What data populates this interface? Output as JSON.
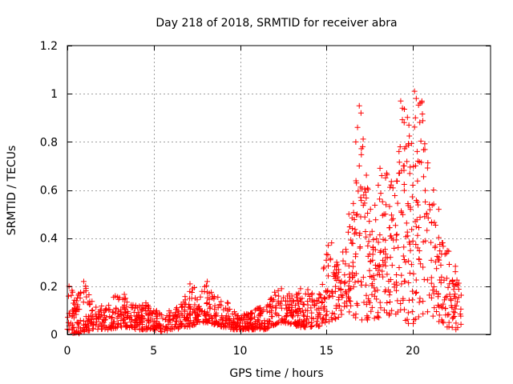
{
  "chart_data": {
    "type": "scatter",
    "title": "Day 218 of 2018, SRMTID for receiver abra",
    "xlabel": "GPS time / hours",
    "ylabel": "SRMTID / TECUs",
    "xlim": [
      0,
      24.5
    ],
    "ylim": [
      0,
      1.2
    ],
    "grid": true,
    "marker": "+",
    "color": "#ff0000",
    "xticks": [
      0,
      5,
      10,
      15,
      20
    ],
    "xtick_labels": [
      "0",
      "5",
      "10",
      "15",
      "20"
    ],
    "yticks": [
      0,
      0.2,
      0.4,
      0.6,
      0.8,
      1.0,
      1.2
    ],
    "ytick_labels": [
      "0",
      "0.2",
      "0.4",
      "0.6",
      "0.8",
      "1",
      "1.2"
    ],
    "series": [
      {
        "name": "abra",
        "envelope": {
          "x": [
            0,
            0.15,
            0.5,
            1,
            1.5,
            2,
            2.5,
            3,
            3.5,
            4,
            4.5,
            5,
            5.5,
            6,
            6.5,
            7,
            7.5,
            8,
            8.5,
            9,
            9.5,
            10,
            10.5,
            11,
            11.5,
            12,
            12.5,
            13,
            13.5,
            14,
            14.5,
            15,
            15.5,
            16,
            16.5,
            17,
            17.5,
            18,
            18.5,
            19,
            19.5,
            20,
            20.5,
            21,
            21.5,
            22,
            22.5,
            22.8
          ],
          "upper": [
            0.14,
            0.2,
            0.16,
            0.21,
            0.13,
            0.12,
            0.14,
            0.18,
            0.16,
            0.12,
            0.14,
            0.11,
            0.09,
            0.1,
            0.12,
            0.19,
            0.2,
            0.21,
            0.16,
            0.15,
            0.12,
            0.08,
            0.09,
            0.11,
            0.12,
            0.18,
            0.19,
            0.16,
            0.18,
            0.19,
            0.15,
            0.37,
            0.3,
            0.35,
            0.5,
            0.95,
            0.55,
            0.58,
            0.68,
            0.6,
            0.97,
            0.85,
            1.01,
            0.63,
            0.42,
            0.36,
            0.3,
            0.18
          ],
          "lower": [
            0.02,
            0.01,
            0.0,
            0.01,
            0.02,
            0.02,
            0.02,
            0.03,
            0.03,
            0.02,
            0.02,
            0.02,
            0.01,
            0.02,
            0.02,
            0.03,
            0.04,
            0.05,
            0.04,
            0.03,
            0.02,
            0.02,
            0.02,
            0.02,
            0.02,
            0.04,
            0.05,
            0.04,
            0.03,
            0.03,
            0.03,
            0.05,
            0.06,
            0.08,
            0.08,
            0.05,
            0.06,
            0.06,
            0.08,
            0.07,
            0.05,
            0.03,
            0.05,
            0.08,
            0.05,
            0.03,
            0.02,
            0.04
          ]
        },
        "highlights": [
          {
            "x": 16.9,
            "y": 0.95
          },
          {
            "x": 17.0,
            "y": 0.92
          },
          {
            "x": 16.8,
            "y": 0.86
          },
          {
            "x": 17.1,
            "y": 0.78
          },
          {
            "x": 16.7,
            "y": 0.8
          },
          {
            "x": 16.9,
            "y": 0.7
          },
          {
            "x": 19.3,
            "y": 0.97
          },
          {
            "x": 19.4,
            "y": 0.94
          },
          {
            "x": 19.5,
            "y": 0.88
          },
          {
            "x": 19.6,
            "y": 0.78
          },
          {
            "x": 19.2,
            "y": 0.76
          },
          {
            "x": 19.5,
            "y": 0.7
          },
          {
            "x": 20.1,
            "y": 1.01
          },
          {
            "x": 20.2,
            "y": 0.98
          },
          {
            "x": 20.15,
            "y": 0.9
          },
          {
            "x": 20.25,
            "y": 0.76
          },
          {
            "x": 20.3,
            "y": 0.72
          },
          {
            "x": 20.0,
            "y": 0.62
          },
          {
            "x": 18.1,
            "y": 0.69
          },
          {
            "x": 18.2,
            "y": 0.66
          },
          {
            "x": 18.0,
            "y": 0.62
          },
          {
            "x": 21.5,
            "y": 0.52
          },
          {
            "x": 21.2,
            "y": 0.6
          },
          {
            "x": 15.3,
            "y": 0.38
          },
          {
            "x": 15.1,
            "y": 0.37
          },
          {
            "x": 16.3,
            "y": 0.5
          },
          {
            "x": 16.5,
            "y": 0.44
          },
          {
            "x": 0.1,
            "y": 0.2
          },
          {
            "x": 0.95,
            "y": 0.22
          },
          {
            "x": 7.1,
            "y": 0.21
          },
          {
            "x": 8.1,
            "y": 0.22
          },
          {
            "x": 12.4,
            "y": 0.19
          },
          {
            "x": 13.5,
            "y": 0.19
          }
        ]
      }
    ]
  }
}
